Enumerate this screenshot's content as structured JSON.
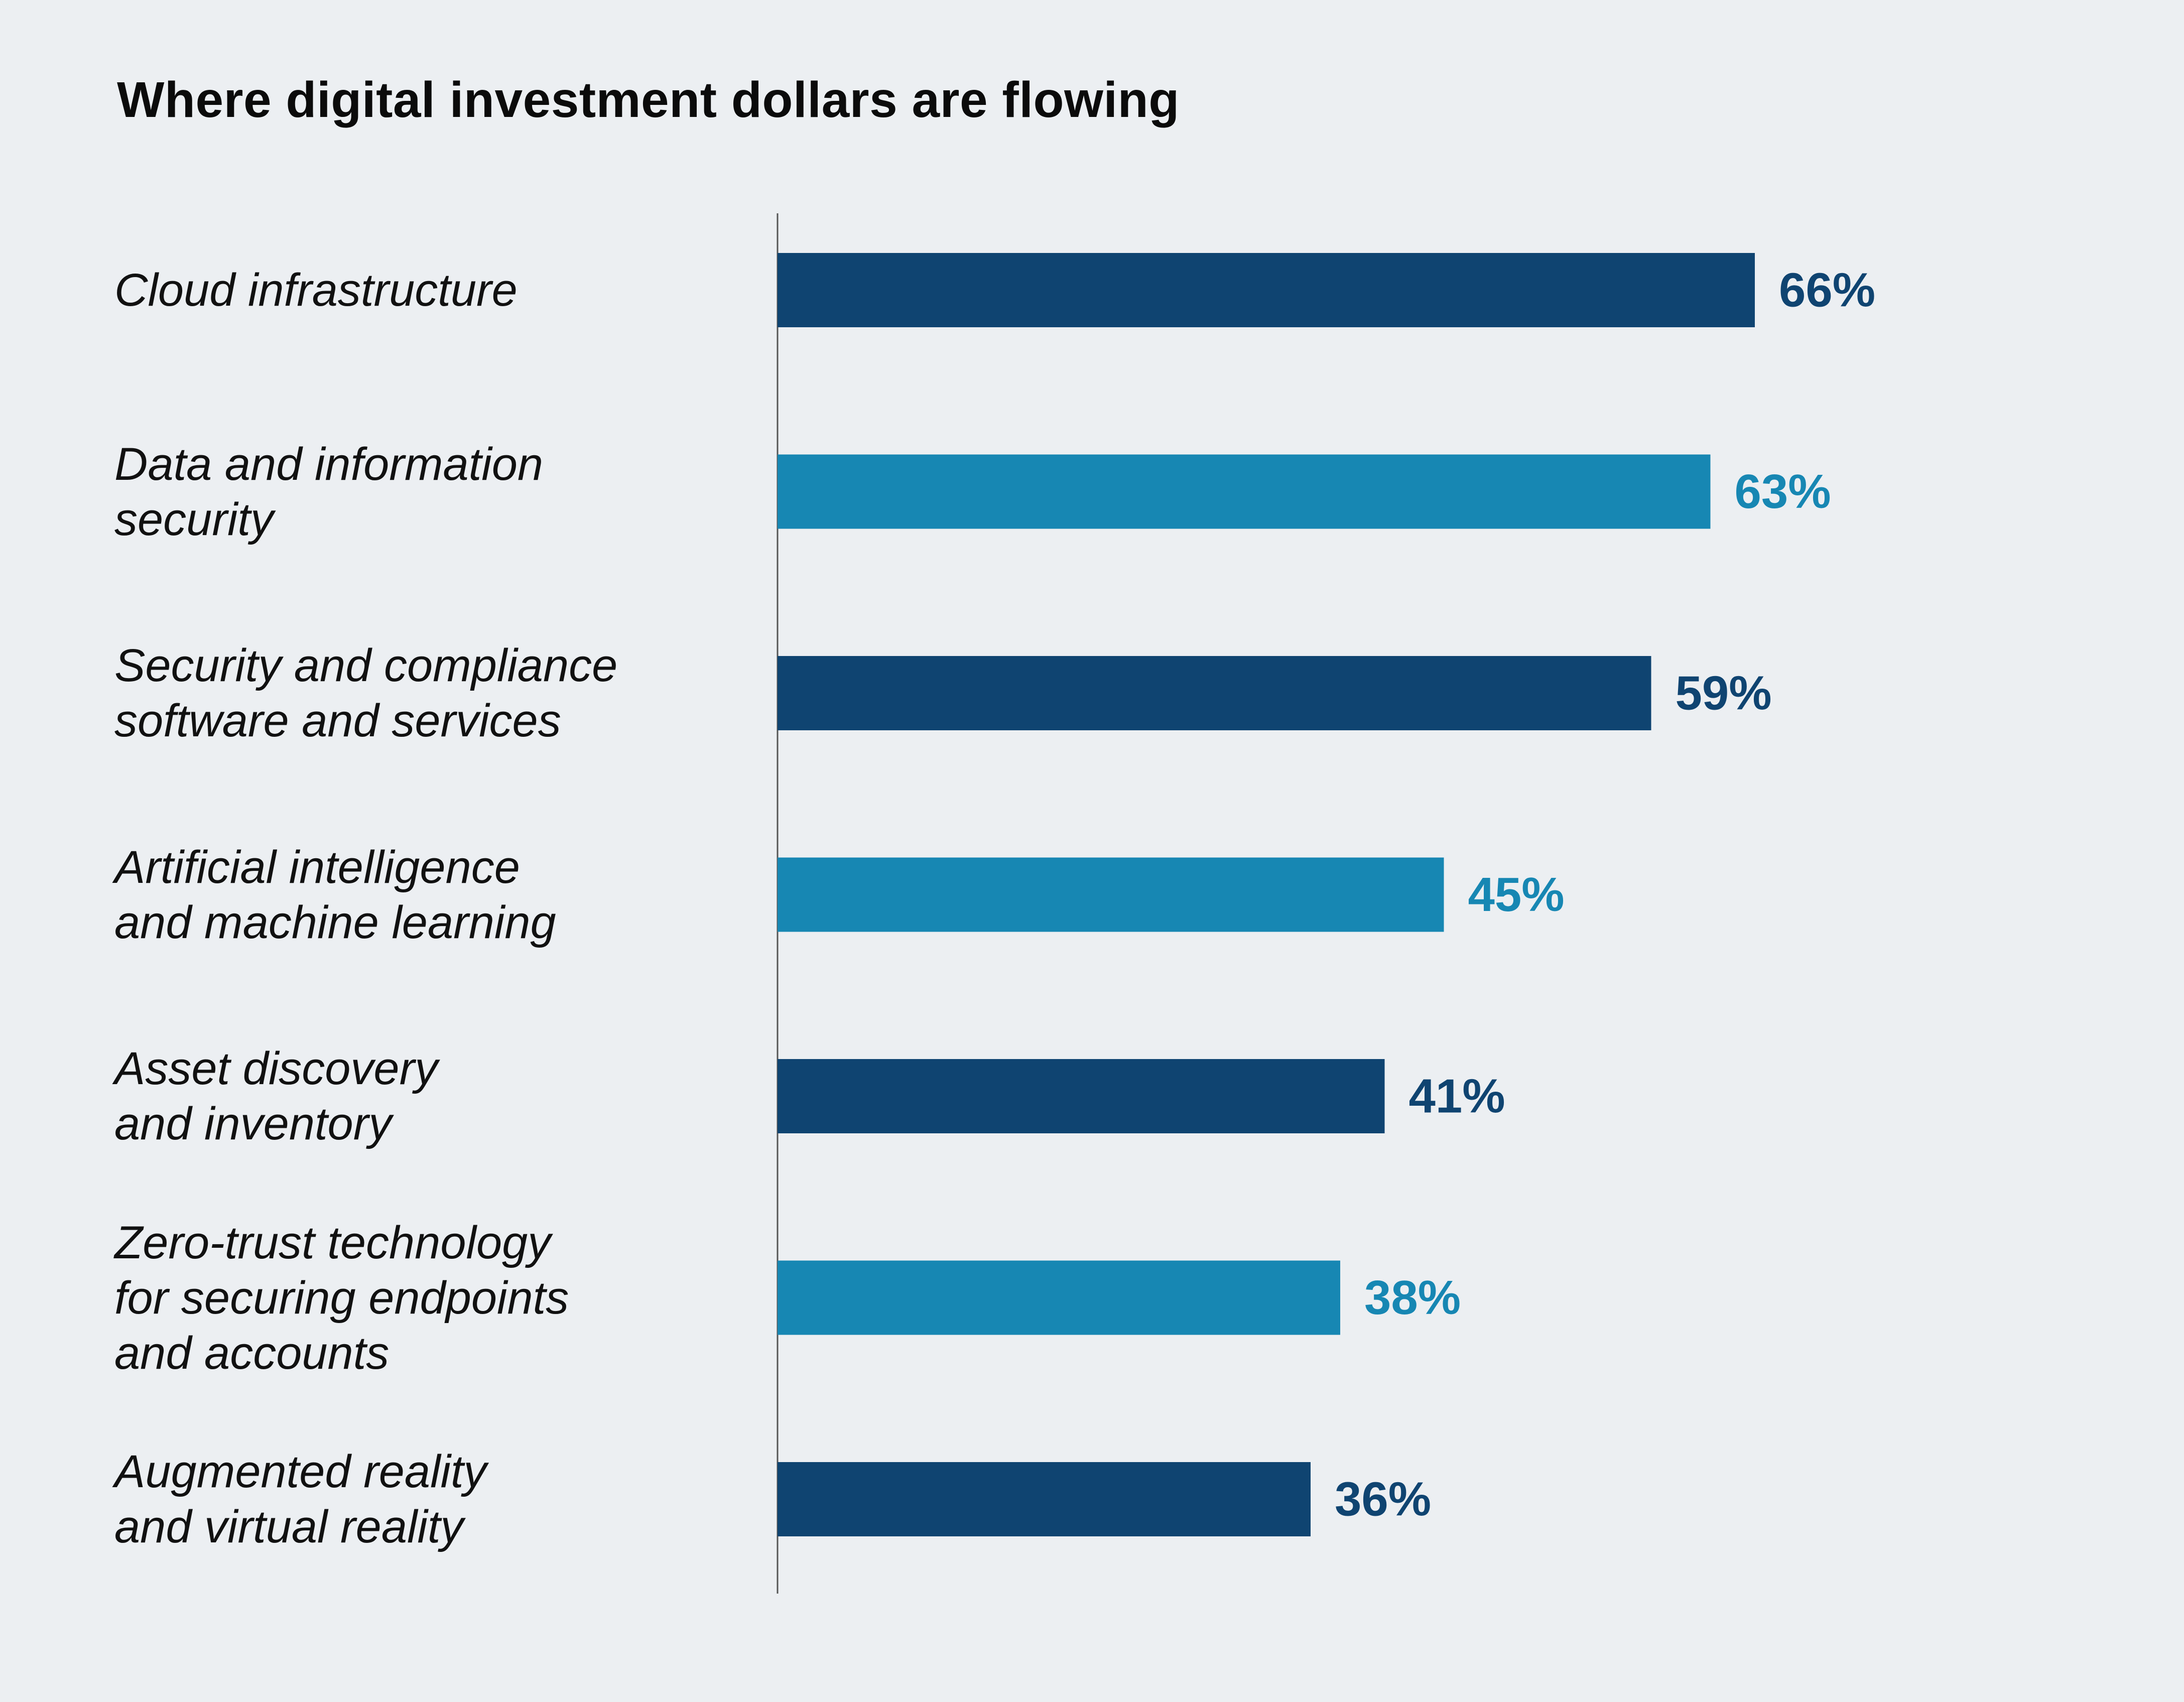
{
  "chart_data": {
    "type": "bar",
    "orientation": "horizontal",
    "title": "Where digital investment dollars are flowing",
    "xlabel": "",
    "ylabel": "",
    "grid": false,
    "legend": "none",
    "xlim": [
      0,
      100
    ],
    "categories": [
      "Cloud infrastructure",
      "Data and information\nsecurity",
      "Security and compliance\nsoftware and services",
      "Artificial intelligence\nand machine learning",
      "Asset discovery\nand inventory",
      "Zero-trust technology\nfor securing endpoints\nand accounts",
      "Augmented reality\nand virtual reality"
    ],
    "values": [
      66,
      63,
      59,
      45,
      41,
      38,
      36
    ],
    "value_labels": [
      "66%",
      "63%",
      "59%",
      "45%",
      "41%",
      "38%",
      "36%"
    ],
    "bar_colors": [
      "#0f4471",
      "#1787b3",
      "#0f4471",
      "#1787b3",
      "#0f4471",
      "#1787b3",
      "#0f4471"
    ]
  }
}
